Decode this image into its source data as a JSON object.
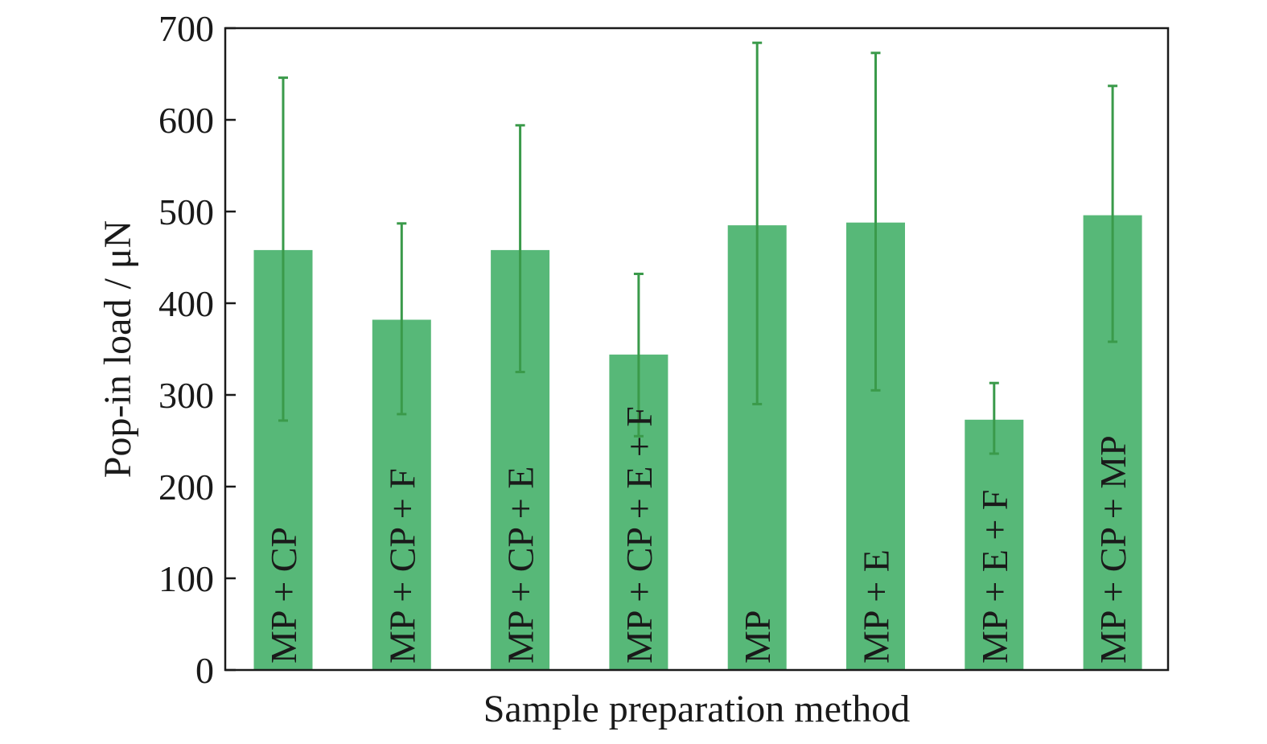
{
  "chart_data": {
    "type": "bar",
    "title": "",
    "xlabel": "Sample preparation method",
    "ylabel": "Pop-in load / μN",
    "ylim": [
      0,
      700
    ],
    "yticks": [
      0,
      100,
      200,
      300,
      400,
      500,
      600,
      700
    ],
    "categories": [
      "MP + CP",
      "MP + CP + F",
      "MP + CP + E",
      "MP + CP + E + F",
      "MP",
      "MP + E",
      "MP + E + F",
      "MP + CP + MP"
    ],
    "series": [
      {
        "values": [
          458,
          382,
          458,
          344,
          485,
          488,
          273,
          496
        ],
        "error_low": [
          272,
          279,
          325,
          255,
          290,
          305,
          236,
          358
        ],
        "error_high": [
          646,
          487,
          594,
          432,
          684,
          673,
          313,
          637
        ]
      }
    ],
    "grid": false,
    "legend": "none",
    "colors": {
      "bar": "#57b878",
      "error_bar": "#3a9a4a",
      "axis": "#1a1a1a",
      "text": "#1a1a1a"
    }
  }
}
